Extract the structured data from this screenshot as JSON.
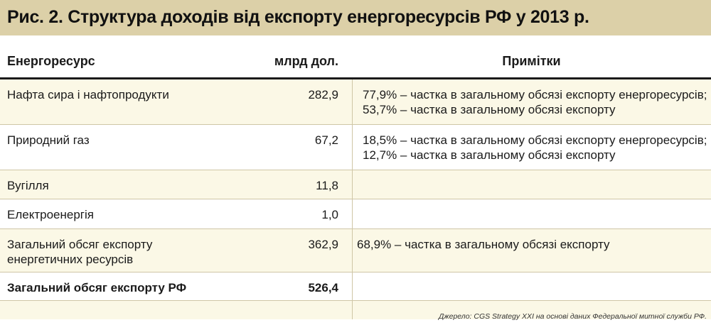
{
  "title": "Рис. 2. Структура доходів від експорту енергоресурсів РФ у 2013 р.",
  "table": {
    "headers": {
      "resource": "Енергоресурс",
      "amount": "млрд  дол.",
      "notes": "Примітки"
    },
    "rows": [
      {
        "resource": [
          "Нафта сира і нафтопродукти"
        ],
        "amount": "282,9",
        "notes": [
          "77,9% – частка в загальному обсязі експорту енергоресурсів;",
          "53,7% – частка в загальному обсязі експорту"
        ]
      },
      {
        "resource": [
          "Природний газ"
        ],
        "amount": "67,2",
        "notes": [
          "18,5% – частка в загальному обсязі експорту енергоресурсів;",
          "12,7% – частка в загальному обсязі експорту"
        ]
      },
      {
        "resource": [
          "Вугілля"
        ],
        "amount": "11,8",
        "notes": []
      },
      {
        "resource": [
          "Електроенергія"
        ],
        "amount": "1,0",
        "notes": []
      },
      {
        "resource": [
          "Загальний обсяг експорту",
          "енергетичних ресурсів"
        ],
        "amount": "362,9",
        "notes": [
          "68,9% – частка в загальному обсязі експорту"
        ]
      },
      {
        "resource": [
          "Загальний обсяг експорту РФ"
        ],
        "amount": "526,4",
        "notes": []
      }
    ]
  },
  "source": "Джерело: CGS Strategy XXI на основі даних Федеральної митної служби РФ."
}
